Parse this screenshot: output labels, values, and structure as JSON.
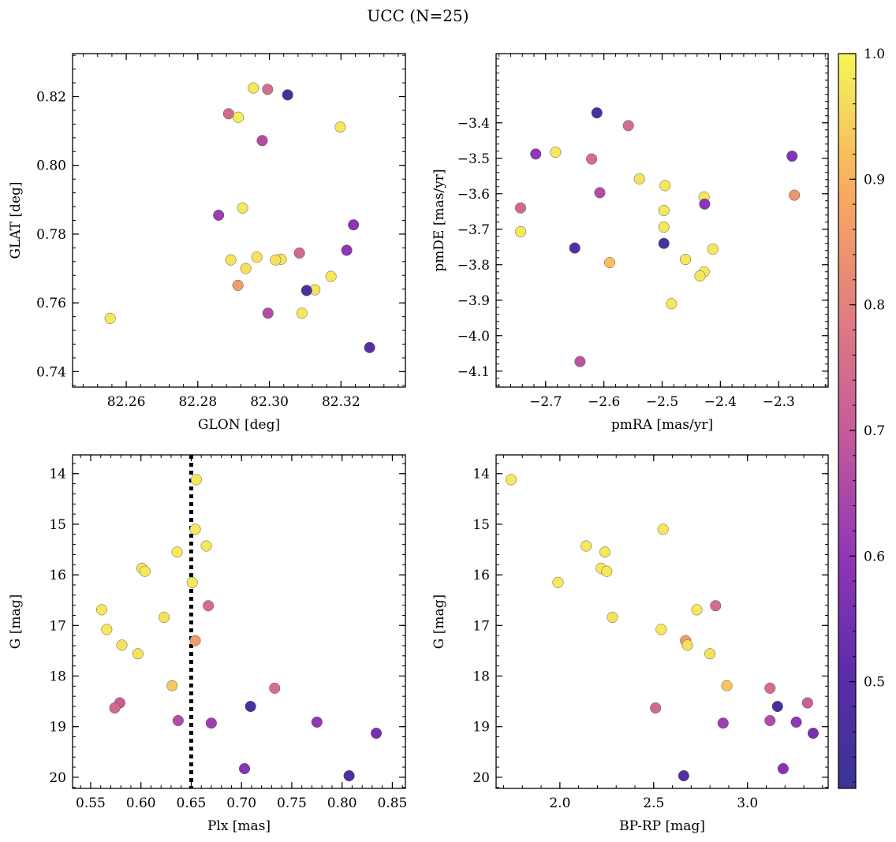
{
  "figure": {
    "title": "UCC (N=25)",
    "colorbar": {
      "range": [
        0.415,
        1.0
      ],
      "ticks": [
        "0.5",
        "0.6",
        "0.7",
        "0.8",
        "0.9",
        "1.0"
      ],
      "tick_values": [
        0.5,
        0.6,
        0.7,
        0.8,
        0.9,
        1.0
      ],
      "colormap": "plasma (truncated)"
    }
  },
  "chart_data": [
    {
      "type": "scatter",
      "xlabel": "GLON [deg]",
      "ylabel": "GLAT [deg]",
      "xlim": [
        82.245,
        82.338
      ],
      "ylim": [
        0.7355,
        0.8325
      ],
      "xticks": [
        "82.26",
        "82.28",
        "82.30",
        "82.32"
      ],
      "xtick_values": [
        82.26,
        82.28,
        82.3,
        82.32
      ],
      "yticks": [
        "0.74",
        "0.76",
        "0.78",
        "0.80",
        "0.82"
      ],
      "ytick_values": [
        0.74,
        0.76,
        0.78,
        0.8,
        0.82
      ],
      "x": [
        82.2955,
        82.2995,
        82.3051,
        82.2886,
        82.2913,
        82.3198,
        82.298,
        82.2858,
        82.2925,
        82.3235,
        82.3216,
        82.2892,
        82.2965,
        82.3084,
        82.3033,
        82.3017,
        82.2934,
        82.2912,
        82.3172,
        82.3127,
        82.3104,
        82.3091,
        82.2555,
        82.2996,
        82.328
      ],
      "y": [
        0.8225,
        0.8221,
        0.8205,
        0.815,
        0.814,
        0.8111,
        0.8072,
        0.7855,
        0.7876,
        0.7827,
        0.7753,
        0.7725,
        0.7733,
        0.7745,
        0.7727,
        0.7725,
        0.77,
        0.7651,
        0.7677,
        0.7638,
        0.7636,
        0.757,
        0.7555,
        0.757,
        0.747
      ],
      "c": [
        0.98,
        0.75,
        0.43,
        0.74,
        0.99,
        0.98,
        0.66,
        0.62,
        0.98,
        0.59,
        0.6,
        0.97,
        0.97,
        0.74,
        0.97,
        0.97,
        0.97,
        0.86,
        0.98,
        0.97,
        0.46,
        0.98,
        0.98,
        0.66,
        0.49
      ]
    },
    {
      "type": "scatter",
      "xlabel": "pmRA [mas/yr]",
      "ylabel": "pmDE [mas/yr]",
      "xlim": [
        -2.785,
        -2.215
      ],
      "ylim": [
        -4.145,
        -3.205
      ],
      "xticks": [
        "−2.7",
        "−2.6",
        "−2.5",
        "−2.4",
        "−2.3"
      ],
      "xtick_values": [
        -2.7,
        -2.6,
        -2.5,
        -2.4,
        -2.3
      ],
      "yticks": [
        "−3.4",
        "−3.5",
        "−3.6",
        "−3.7",
        "−3.8",
        "−3.9",
        "−4.0",
        "−4.1"
      ],
      "ytick_values": [
        -3.4,
        -3.5,
        -3.6,
        -3.7,
        -3.8,
        -3.9,
        -4.0,
        -4.1
      ],
      "x": [
        -2.612,
        -2.558,
        -2.717,
        -2.683,
        -2.621,
        -2.277,
        -2.539,
        -2.495,
        -2.607,
        -2.428,
        -2.273,
        -2.743,
        -2.497,
        -2.497,
        -2.743,
        -2.427,
        -2.65,
        -2.413,
        -2.46,
        -2.59,
        -2.428,
        -2.435,
        -2.484,
        -2.641,
        -2.497
      ],
      "y": [
        -3.372,
        -3.408,
        -3.488,
        -3.483,
        -3.502,
        -3.494,
        -3.558,
        -3.577,
        -3.597,
        -3.609,
        -3.604,
        -3.64,
        -3.647,
        -3.694,
        -3.707,
        -3.629,
        -3.753,
        -3.756,
        -3.785,
        -3.794,
        -3.82,
        -3.832,
        -3.91,
        -4.073,
        -3.74
      ],
      "c": [
        0.46,
        0.75,
        0.6,
        0.98,
        0.75,
        0.58,
        0.97,
        0.98,
        0.66,
        0.98,
        0.84,
        0.74,
        0.98,
        0.98,
        0.98,
        0.59,
        0.49,
        0.98,
        0.98,
        0.92,
        0.98,
        0.98,
        0.98,
        0.68,
        0.45
      ]
    },
    {
      "type": "scatter",
      "xlabel": "Plx [mas]",
      "ylabel": "G [mag]",
      "xlim": [
        0.532,
        0.863
      ],
      "ylim": [
        20.22,
        13.63
      ],
      "xticks": [
        "0.55",
        "0.60",
        "0.65",
        "0.70",
        "0.75",
        "0.80",
        "0.85"
      ],
      "xtick_values": [
        0.55,
        0.6,
        0.65,
        0.7,
        0.75,
        0.8,
        0.85
      ],
      "yticks": [
        "14",
        "15",
        "16",
        "17",
        "18",
        "19",
        "20"
      ],
      "ytick_values": [
        14,
        15,
        16,
        17,
        18,
        19,
        20
      ],
      "vline": 0.65,
      "x": [
        0.655,
        0.654,
        0.665,
        0.636,
        0.601,
        0.604,
        0.651,
        0.561,
        0.667,
        0.566,
        0.623,
        0.581,
        0.654,
        0.597,
        0.631,
        0.733,
        0.579,
        0.574,
        0.709,
        0.637,
        0.67,
        0.775,
        0.834,
        0.703,
        0.807
      ],
      "y": [
        14.12,
        15.1,
        15.43,
        15.55,
        15.87,
        15.93,
        16.15,
        16.69,
        16.61,
        17.08,
        16.84,
        17.39,
        17.3,
        17.56,
        18.19,
        18.24,
        18.53,
        18.63,
        18.6,
        18.88,
        18.93,
        18.91,
        19.13,
        19.83,
        19.97
      ],
      "c": [
        0.98,
        0.98,
        0.98,
        0.98,
        0.98,
        0.98,
        0.98,
        0.98,
        0.75,
        0.98,
        0.97,
        0.97,
        0.86,
        0.97,
        0.93,
        0.75,
        0.71,
        0.74,
        0.45,
        0.66,
        0.62,
        0.6,
        0.55,
        0.58,
        0.48
      ]
    },
    {
      "type": "scatter",
      "xlabel": "BP-RP [mag]",
      "ylabel": "G [mag]",
      "xlim": [
        1.66,
        3.43
      ],
      "ylim": [
        20.22,
        13.63
      ],
      "xticks": [
        "2.0",
        "2.5",
        "3.0"
      ],
      "xtick_values": [
        2.0,
        2.5,
        3.0
      ],
      "yticks": [
        "14",
        "15",
        "16",
        "17",
        "18",
        "19",
        "20"
      ],
      "ytick_values": [
        14,
        15,
        16,
        17,
        18,
        19,
        20
      ],
      "x": [
        1.74,
        2.55,
        2.14,
        2.24,
        2.22,
        2.25,
        1.99,
        2.28,
        2.73,
        2.83,
        2.54,
        2.67,
        2.68,
        2.8,
        2.89,
        3.12,
        3.32,
        2.51,
        3.16,
        3.12,
        2.87,
        3.26,
        3.35,
        3.19,
        2.66
      ],
      "y": [
        14.12,
        15.1,
        15.43,
        15.55,
        15.87,
        15.93,
        16.15,
        16.84,
        16.69,
        16.61,
        17.08,
        17.3,
        17.39,
        17.56,
        18.19,
        18.24,
        18.53,
        18.63,
        18.6,
        18.88,
        18.93,
        18.91,
        19.13,
        19.83,
        19.97
      ],
      "c": [
        0.98,
        0.98,
        0.98,
        0.98,
        0.98,
        0.98,
        0.98,
        0.97,
        0.98,
        0.75,
        0.98,
        0.86,
        0.97,
        0.97,
        0.93,
        0.75,
        0.71,
        0.74,
        0.45,
        0.66,
        0.62,
        0.6,
        0.55,
        0.58,
        0.48
      ]
    }
  ]
}
